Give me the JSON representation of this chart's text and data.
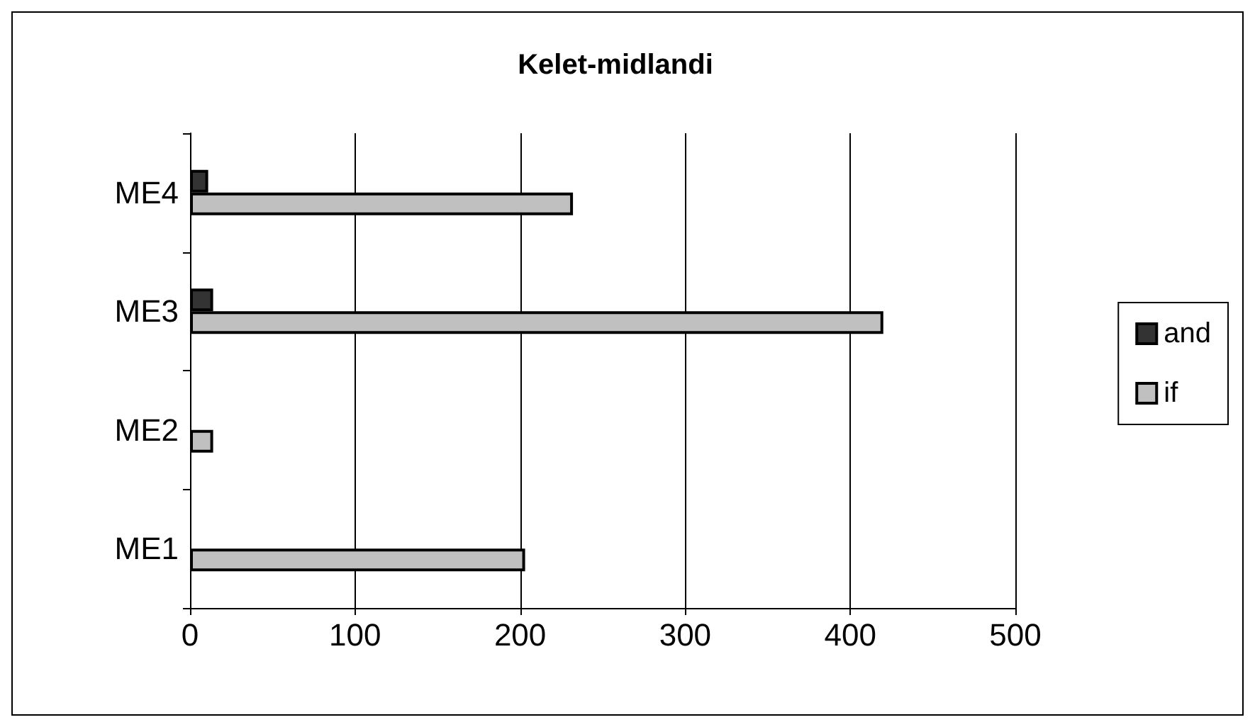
{
  "chart_data": {
    "type": "bar",
    "orientation": "horizontal",
    "title": "Kelet-midlandi",
    "categories": [
      "ME4",
      "ME3",
      "ME2",
      "ME1"
    ],
    "series": [
      {
        "name": "and",
        "color": "#333333",
        "values": [
          11,
          14,
          0,
          0
        ]
      },
      {
        "name": "if",
        "color": "#c0c0c0",
        "values": [
          232,
          420,
          14,
          203
        ]
      }
    ],
    "xlim": [
      0,
      500
    ],
    "xticks": [
      0,
      100,
      200,
      300,
      400,
      500
    ],
    "grid": "x",
    "legend": "right"
  }
}
